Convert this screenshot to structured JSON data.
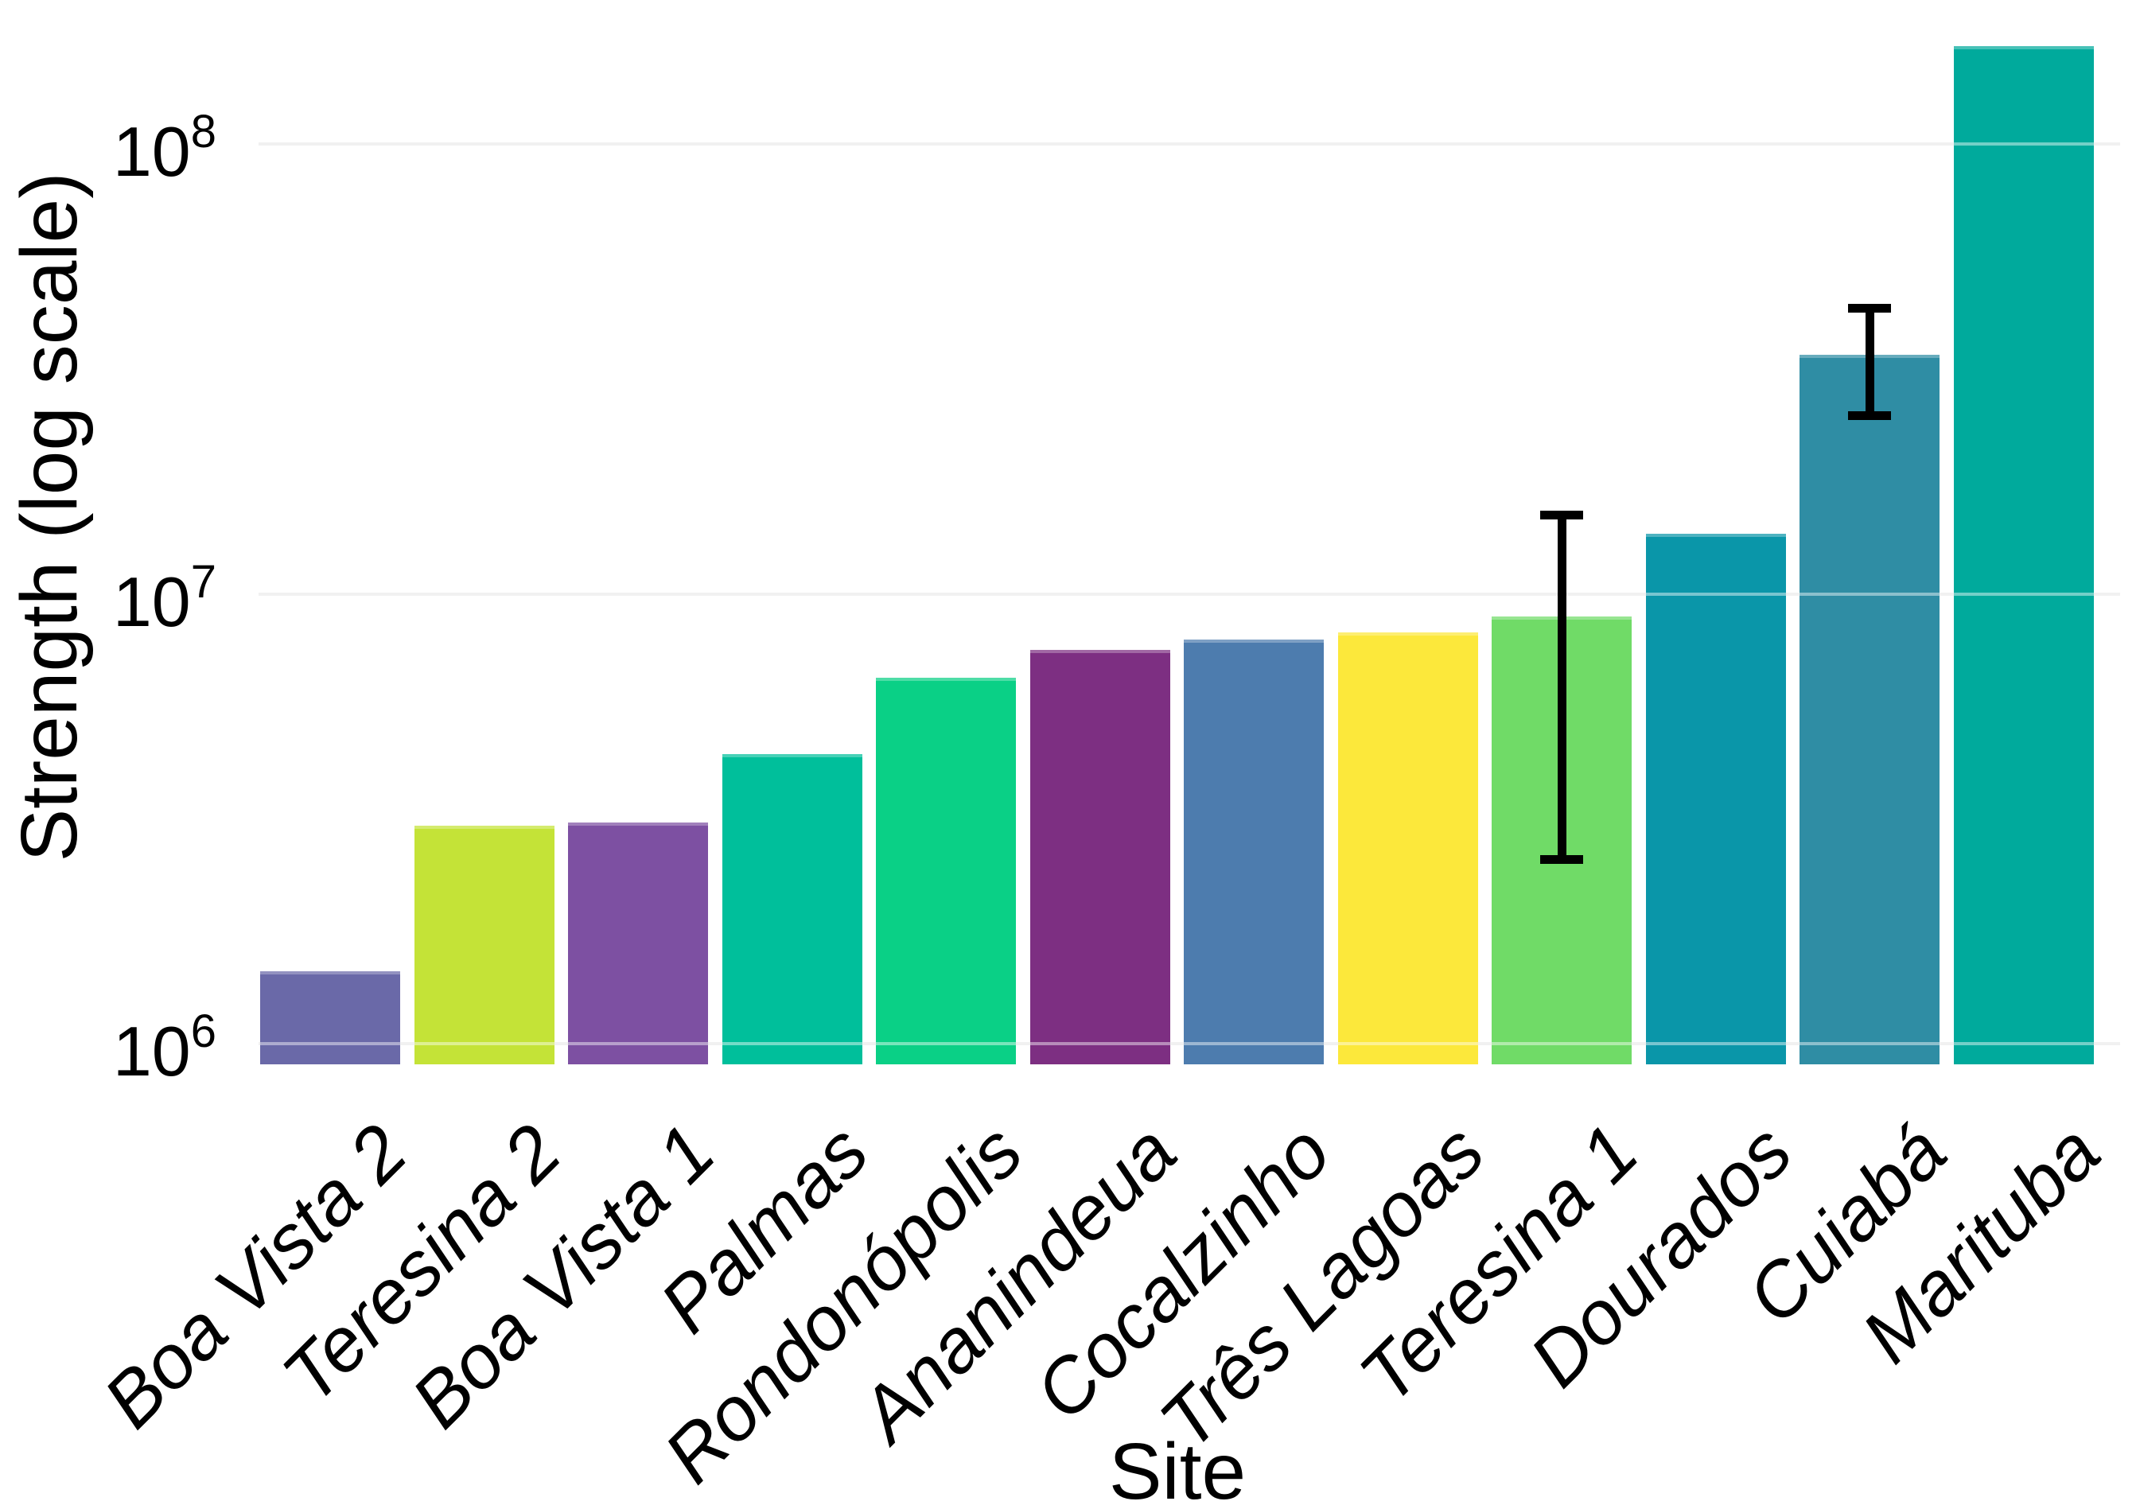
{
  "figure": {
    "background": "#ffffff",
    "text_color": "#000000",
    "grid_color": "#e6e6e6",
    "y_axis": {
      "label": "Strength (log scale)",
      "ticks": [
        {
          "base": "10",
          "exp": "8"
        },
        {
          "base": "10",
          "exp": "7"
        },
        {
          "base": "10",
          "exp": "6"
        }
      ]
    },
    "x_axis": {
      "label": "Site"
    }
  },
  "chart_data": {
    "type": "bar",
    "title": "",
    "xlabel": "Site",
    "ylabel": "Strength (log scale)",
    "yscale": "log",
    "ylim": [
      900000,
      200000000
    ],
    "ytick_labels": [
      "10^6",
      "10^7",
      "10^8"
    ],
    "grid": "horizontal gridlines at powers of ten, light gray, no axis spines",
    "legend": "none",
    "categories": [
      "Boa Vista 2",
      "Teresina 2",
      "Boa Vista 1",
      "Palmas",
      "Rondonópolis",
      "Ananindeua",
      "Cocalzinho",
      "Três Lagoas",
      "Teresina 1",
      "Dourados",
      "Cuiabá",
      "Marituba"
    ],
    "values": [
      1450000,
      3050000,
      3100000,
      4400000,
      6500000,
      7500000,
      7900000,
      8200000,
      8900000,
      13600000,
      34000000,
      165000000
    ],
    "bar_colors": [
      "#6a69a8",
      "#c4e337",
      "#7d50a2",
      "#00bf9b",
      "#0ad086",
      "#7d2f82",
      "#4d7cae",
      "#fce83b",
      "#70db67",
      "#0a96a9",
      "#2f8da4",
      "#00aa9c"
    ],
    "error_bars": [
      {
        "category": "Teresina 1",
        "low": 2560000,
        "high": 15000000
      },
      {
        "category": "Cuiabá",
        "low": 24800000,
        "high": 43200000
      }
    ],
    "error_bar_color": "#000000"
  }
}
